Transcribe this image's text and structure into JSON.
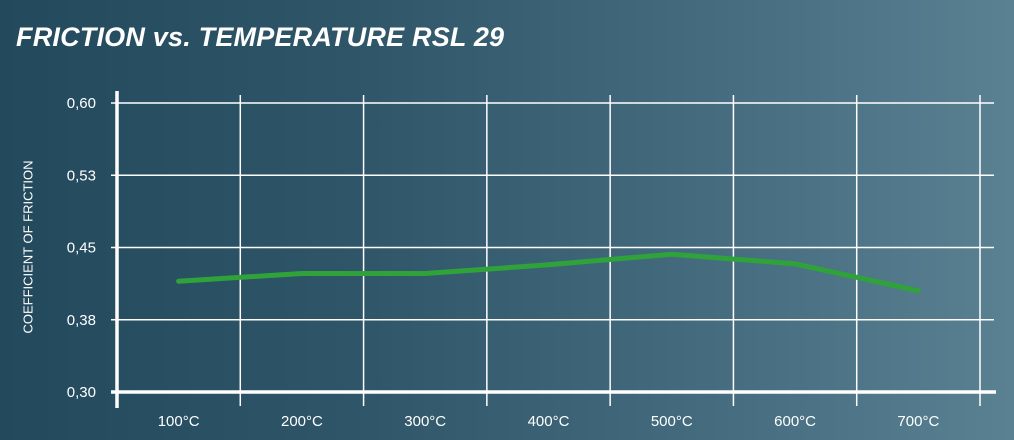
{
  "chart_data": {
    "type": "line",
    "title": "FRICTION vs. TEMPERATURE RSL 29",
    "xlabel": "",
    "ylabel": "COEFFICIENT OF FRICTION",
    "categories": [
      "100°C",
      "200°C",
      "300°C",
      "400°C",
      "500°C",
      "600°C",
      "700°C"
    ],
    "y_ticks": [
      "0,30",
      "0,38",
      "0,45",
      "0,53",
      "0,60"
    ],
    "ylim": [
      0.3,
      0.6
    ],
    "grid": true,
    "series": [
      {
        "values": [
          0.415,
          0.423,
          0.423,
          0.432,
          0.443,
          0.433,
          0.405
        ]
      }
    ],
    "colors": {
      "line": "#2fa33a",
      "grid": "#ffffff",
      "axis": "#ffffff"
    }
  }
}
